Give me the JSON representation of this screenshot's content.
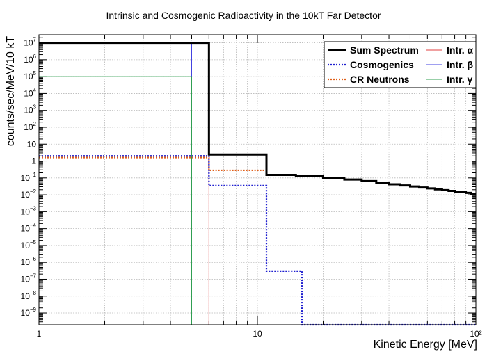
{
  "chart_data": {
    "type": "line",
    "title": "Intrinsic and Cosmogenic Radioactivity in the 10kT Far Detector",
    "xlabel": "Kinetic Energy [MeV]",
    "ylabel": "counts/sec/MeV/10 kT",
    "x_scale": "log",
    "y_scale": "log",
    "xlim": [
      1,
      100
    ],
    "ylim": [
      2e-10,
      30000000.0
    ],
    "x_ticks": [
      {
        "v": 1,
        "label": "1"
      },
      {
        "v": 10,
        "label": "10"
      },
      {
        "v": 100,
        "label": "10²"
      }
    ],
    "y_ticks": [
      {
        "v": 10000000.0,
        "base": "10",
        "exp": "7"
      },
      {
        "v": 1000000.0,
        "base": "10",
        "exp": "6"
      },
      {
        "v": 100000.0,
        "base": "10",
        "exp": "5"
      },
      {
        "v": 10000.0,
        "base": "10",
        "exp": "4"
      },
      {
        "v": 1000.0,
        "base": "10",
        "exp": "3"
      },
      {
        "v": 100.0,
        "base": "10",
        "exp": "2"
      },
      {
        "v": 10,
        "base": "10",
        "exp": ""
      },
      {
        "v": 1,
        "base": "1",
        "exp": ""
      },
      {
        "v": 0.1,
        "base": "10",
        "exp": "−1"
      },
      {
        "v": 0.01,
        "base": "10",
        "exp": "−2"
      },
      {
        "v": 0.001,
        "base": "10",
        "exp": "−3"
      },
      {
        "v": 0.0001,
        "base": "10",
        "exp": "−4"
      },
      {
        "v": 1e-05,
        "base": "10",
        "exp": "−5"
      },
      {
        "v": 1e-06,
        "base": "10",
        "exp": "−6"
      },
      {
        "v": 1e-07,
        "base": "10",
        "exp": "−7"
      },
      {
        "v": 1e-08,
        "base": "10",
        "exp": "−8"
      },
      {
        "v": 1e-09,
        "base": "10",
        "exp": "−9"
      }
    ],
    "grid": true,
    "legend_position": "top-right",
    "series": [
      {
        "name": "Sum Spectrum",
        "color": "#000000",
        "style": "solid",
        "width": "thick",
        "points": [
          [
            1,
            10000000.0
          ],
          [
            6,
            10000000.0
          ],
          [
            6,
            2.4
          ],
          [
            11,
            2.4
          ],
          [
            11,
            0.15
          ],
          [
            15,
            0.15
          ],
          [
            15,
            0.13
          ],
          [
            20,
            0.13
          ],
          [
            20,
            0.1
          ],
          [
            25,
            0.1
          ],
          [
            25,
            0.08
          ],
          [
            30,
            0.08
          ],
          [
            30,
            0.065
          ],
          [
            35,
            0.065
          ],
          [
            35,
            0.05
          ],
          [
            40,
            0.05
          ],
          [
            40,
            0.042
          ],
          [
            45,
            0.042
          ],
          [
            45,
            0.036
          ],
          [
            50,
            0.036
          ],
          [
            50,
            0.031
          ],
          [
            55,
            0.031
          ],
          [
            55,
            0.027
          ],
          [
            60,
            0.027
          ],
          [
            60,
            0.024
          ],
          [
            65,
            0.024
          ],
          [
            65,
            0.021
          ],
          [
            70,
            0.021
          ],
          [
            70,
            0.019
          ],
          [
            75,
            0.019
          ],
          [
            75,
            0.017
          ],
          [
            80,
            0.017
          ],
          [
            80,
            0.015
          ],
          [
            85,
            0.015
          ],
          [
            85,
            0.014
          ],
          [
            90,
            0.014
          ],
          [
            90,
            0.013
          ],
          [
            95,
            0.013
          ],
          [
            95,
            0.0115
          ],
          [
            100,
            0.011
          ]
        ]
      },
      {
        "name": "Cosmogenics",
        "color": "#1f1fcf",
        "style": "dotted",
        "width": "medium",
        "points": [
          [
            1,
            2
          ],
          [
            6,
            2
          ],
          [
            6,
            0.035
          ],
          [
            11,
            0.035
          ],
          [
            11,
            3e-07
          ],
          [
            16,
            3e-07
          ],
          [
            16,
            2e-10
          ],
          [
            100,
            2e-10
          ]
        ]
      },
      {
        "name": "CR Neutrons",
        "color": "#e0601a",
        "style": "dotted",
        "width": "medium",
        "points": [
          [
            1,
            1.6
          ],
          [
            6,
            1.6
          ],
          [
            6,
            0.28
          ],
          [
            11,
            0.28
          ],
          [
            11,
            0.15
          ],
          [
            15,
            0.15
          ],
          [
            15,
            0.13
          ],
          [
            20,
            0.13
          ],
          [
            20,
            0.1
          ],
          [
            25,
            0.1
          ],
          [
            25,
            0.08
          ],
          [
            30,
            0.08
          ],
          [
            30,
            0.065
          ],
          [
            35,
            0.065
          ],
          [
            35,
            0.05
          ],
          [
            40,
            0.05
          ],
          [
            40,
            0.042
          ],
          [
            45,
            0.042
          ],
          [
            45,
            0.036
          ],
          [
            50,
            0.036
          ],
          [
            50,
            0.031
          ],
          [
            55,
            0.031
          ],
          [
            55,
            0.027
          ],
          [
            60,
            0.027
          ],
          [
            60,
            0.024
          ],
          [
            65,
            0.024
          ],
          [
            65,
            0.021
          ],
          [
            70,
            0.021
          ],
          [
            70,
            0.019
          ],
          [
            75,
            0.019
          ],
          [
            75,
            0.017
          ],
          [
            80,
            0.017
          ],
          [
            80,
            0.015
          ],
          [
            85,
            0.015
          ],
          [
            85,
            0.014
          ],
          [
            90,
            0.014
          ],
          [
            90,
            0.013
          ],
          [
            95,
            0.013
          ],
          [
            95,
            0.0115
          ],
          [
            100,
            0.011
          ]
        ]
      },
      {
        "name": "Intr. α",
        "color": "#e04040",
        "style": "solid",
        "width": "thin",
        "points": [
          [
            1,
            10000000.0
          ],
          [
            6,
            10000000.0
          ],
          [
            6,
            2e-10
          ]
        ]
      },
      {
        "name": "Intr. β",
        "color": "#4040e0",
        "style": "solid",
        "width": "thin",
        "points": [
          [
            1,
            10000000.0
          ],
          [
            5,
            10000000.0
          ],
          [
            5,
            2e-10
          ]
        ]
      },
      {
        "name": "Intr. γ",
        "color": "#30a050",
        "style": "solid",
        "width": "thin",
        "points": [
          [
            1,
            100000.0
          ],
          [
            5,
            100000.0
          ],
          [
            5,
            2e-10
          ]
        ]
      }
    ]
  }
}
